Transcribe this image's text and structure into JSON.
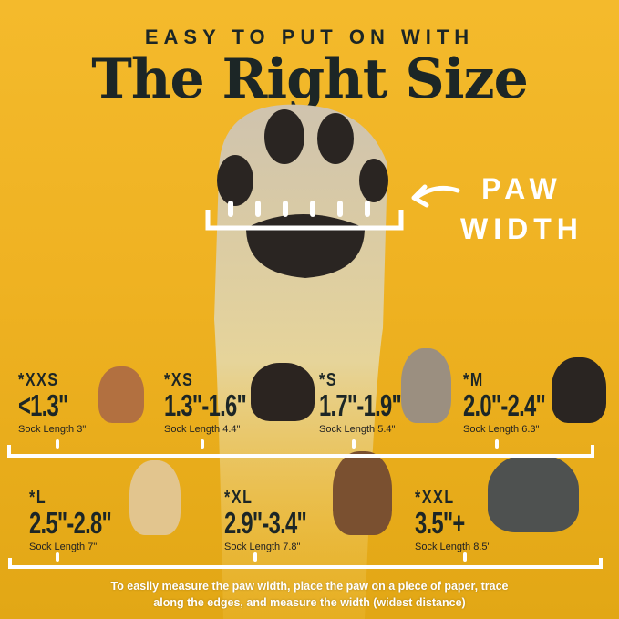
{
  "header": {
    "kicker": "EASY TO PUT ON WITH",
    "title": "The Right Size"
  },
  "callout": {
    "line1": "PAW",
    "line2": "WIDTH",
    "icon": "curved-arrow-left-icon"
  },
  "sizes_row1": [
    {
      "label": "*XXS",
      "value": "<1.3\"",
      "sock": "Sock Length 3\"",
      "dog": "chihuahua"
    },
    {
      "label": "*XS",
      "value": "1.3\"-1.6\"",
      "sock": "Sock Length 4.4\"",
      "dog": "yorkshire-terrier"
    },
    {
      "label": "*S",
      "value": "1.7\"-1.9\"",
      "sock": "Sock Length 5.4\"",
      "dog": "french-bulldog"
    },
    {
      "label": "*M",
      "value": "2.0\"-2.4\"",
      "sock": "Sock Length 6.3\"",
      "dog": "bernese-mountain-dog"
    }
  ],
  "sizes_row2": [
    {
      "label": "*L",
      "value": "2.5\"-2.8\"",
      "sock": "Sock Length 7\"",
      "dog": "golden-retriever"
    },
    {
      "label": "*XL",
      "value": "2.9\"-3.4\"",
      "sock": "Sock Length 7.8\"",
      "dog": "german-shepherd"
    },
    {
      "label": "*XXL",
      "value": "3.5\"+",
      "sock": "Sock Length 8.5\"",
      "dog": "great-dane"
    }
  ],
  "footer": {
    "line1": "To easily measure the paw width, place the paw on a piece of paper, trace",
    "line2": "along the edges, and measure the width (widest distance)"
  },
  "colors": {
    "background": "#efb222",
    "text": "#1c2626",
    "accent": "#ffffff"
  }
}
